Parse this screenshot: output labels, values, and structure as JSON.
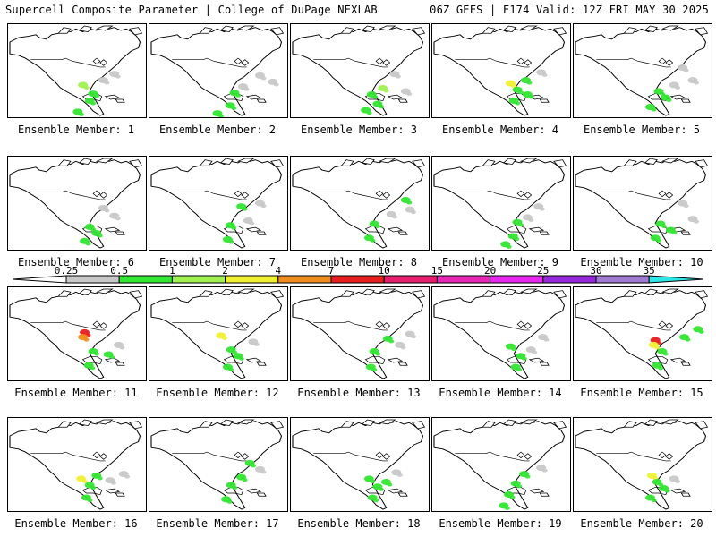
{
  "header": {
    "left": "Supercell Composite Parameter | College of DuPage NEXLAB",
    "right": "06Z GEFS | F174 Valid: 12Z FRI MAY 30 2025"
  },
  "panel_caption_prefix": "Ensemble Member: ",
  "members": [
    {
      "id": "1",
      "blobs": [
        [
          88,
          84,
          "lg"
        ],
        [
          100,
          95,
          "g"
        ],
        [
          96,
          104,
          "g"
        ],
        [
          112,
          78,
          "gy"
        ],
        [
          125,
          70,
          "gy"
        ],
        [
          82,
          118,
          "g"
        ]
      ]
    },
    {
      "id": "2",
      "blobs": [
        [
          100,
          94,
          "g"
        ],
        [
          110,
          86,
          "gy"
        ],
        [
          95,
          110,
          "g"
        ],
        [
          130,
          72,
          "gy"
        ],
        [
          80,
          120,
          "g"
        ],
        [
          145,
          80,
          "gy"
        ]
      ]
    },
    {
      "id": "3",
      "blobs": [
        [
          95,
          96,
          "g"
        ],
        [
          108,
          88,
          "lg"
        ],
        [
          102,
          108,
          "g"
        ],
        [
          122,
          70,
          "gy"
        ],
        [
          88,
          116,
          "g"
        ],
        [
          135,
          92,
          "gy"
        ]
      ]
    },
    {
      "id": "4",
      "blobs": [
        [
          92,
          82,
          "y"
        ],
        [
          100,
          90,
          "g"
        ],
        [
          110,
          78,
          "g"
        ],
        [
          96,
          104,
          "g"
        ],
        [
          128,
          68,
          "gy"
        ],
        [
          112,
          96,
          "g"
        ]
      ]
    },
    {
      "id": "5",
      "blobs": [
        [
          100,
          92,
          "g"
        ],
        [
          118,
          84,
          "gy"
        ],
        [
          128,
          62,
          "gy"
        ],
        [
          90,
          112,
          "g"
        ],
        [
          140,
          78,
          "gy"
        ],
        [
          108,
          100,
          "g"
        ]
      ]
    },
    {
      "id": "6",
      "blobs": [
        [
          96,
          96,
          "g"
        ],
        [
          112,
          72,
          "gy"
        ],
        [
          90,
          114,
          "g"
        ],
        [
          125,
          82,
          "gy"
        ],
        [
          104,
          104,
          "g"
        ]
      ]
    },
    {
      "id": "7",
      "blobs": [
        [
          95,
          94,
          "g"
        ],
        [
          108,
          70,
          "g"
        ],
        [
          92,
          112,
          "g"
        ],
        [
          130,
          66,
          "gy"
        ],
        [
          116,
          88,
          "gy"
        ]
      ]
    },
    {
      "id": "8",
      "blobs": [
        [
          98,
          92,
          "g"
        ],
        [
          135,
          62,
          "g"
        ],
        [
          92,
          110,
          "g"
        ],
        [
          118,
          80,
          "gy"
        ],
        [
          140,
          74,
          "gy"
        ]
      ]
    },
    {
      "id": "9",
      "blobs": [
        [
          100,
          90,
          "g"
        ],
        [
          125,
          70,
          "gy"
        ],
        [
          95,
          108,
          "g"
        ],
        [
          112,
          84,
          "gy"
        ],
        [
          86,
          118,
          "g"
        ]
      ]
    },
    {
      "id": "10",
      "blobs": [
        [
          102,
          92,
          "g"
        ],
        [
          128,
          66,
          "gy"
        ],
        [
          96,
          110,
          "g"
        ],
        [
          140,
          86,
          "gy"
        ],
        [
          114,
          100,
          "g"
        ]
      ]
    },
    {
      "id": "11",
      "blobs": [
        [
          90,
          64,
          "r"
        ],
        [
          88,
          70,
          "o"
        ],
        [
          100,
          88,
          "g"
        ],
        [
          118,
          92,
          "g"
        ],
        [
          95,
          106,
          "g"
        ],
        [
          130,
          80,
          "gy"
        ]
      ]
    },
    {
      "id": "12",
      "blobs": [
        [
          84,
          68,
          "y"
        ],
        [
          96,
          86,
          "g"
        ],
        [
          104,
          94,
          "g"
        ],
        [
          92,
          108,
          "g"
        ],
        [
          122,
          76,
          "gy"
        ]
      ]
    },
    {
      "id": "13",
      "blobs": [
        [
          98,
          88,
          "g"
        ],
        [
          114,
          72,
          "g"
        ],
        [
          94,
          108,
          "g"
        ],
        [
          128,
          80,
          "gy"
        ],
        [
          140,
          66,
          "gy"
        ]
      ]
    },
    {
      "id": "14",
      "blobs": [
        [
          92,
          82,
          "g"
        ],
        [
          104,
          94,
          "g"
        ],
        [
          98,
          108,
          "g"
        ],
        [
          130,
          70,
          "gy"
        ],
        [
          116,
          86,
          "gy"
        ]
      ]
    },
    {
      "id": "15",
      "blobs": [
        [
          96,
          74,
          "r"
        ],
        [
          94,
          80,
          "y"
        ],
        [
          104,
          88,
          "g"
        ],
        [
          130,
          70,
          "g"
        ],
        [
          98,
          106,
          "g"
        ],
        [
          146,
          60,
          "g"
        ]
      ]
    },
    {
      "id": "16",
      "blobs": [
        [
          86,
          84,
          "y"
        ],
        [
          96,
          92,
          "g"
        ],
        [
          104,
          80,
          "g"
        ],
        [
          92,
          108,
          "g"
        ],
        [
          120,
          86,
          "gy"
        ],
        [
          136,
          78,
          "gy"
        ]
      ]
    },
    {
      "id": "17",
      "blobs": [
        [
          96,
          92,
          "g"
        ],
        [
          118,
          64,
          "g"
        ],
        [
          108,
          82,
          "g"
        ],
        [
          90,
          110,
          "g"
        ],
        [
          130,
          72,
          "gy"
        ]
      ]
    },
    {
      "id": "18",
      "blobs": [
        [
          92,
          84,
          "g"
        ],
        [
          102,
          94,
          "g"
        ],
        [
          96,
          108,
          "g"
        ],
        [
          124,
          76,
          "gy"
        ],
        [
          112,
          88,
          "g"
        ]
      ]
    },
    {
      "id": "19",
      "blobs": [
        [
          98,
          90,
          "g"
        ],
        [
          90,
          104,
          "g"
        ],
        [
          108,
          78,
          "g"
        ],
        [
          128,
          70,
          "gy"
        ],
        [
          84,
          118,
          "g"
        ]
      ]
    },
    {
      "id": "20",
      "blobs": [
        [
          92,
          80,
          "y"
        ],
        [
          98,
          88,
          "g"
        ],
        [
          106,
          96,
          "g"
        ],
        [
          90,
          108,
          "g"
        ],
        [
          118,
          84,
          "gy"
        ]
      ]
    }
  ],
  "colorbar": {
    "labels": [
      "0.25",
      "0.5",
      "1",
      "2",
      "4",
      "7",
      "10",
      "15",
      "20",
      "25",
      "30",
      "35"
    ],
    "colors": [
      "#c8c8c8",
      "#32e632",
      "#a0f050",
      "#f0f032",
      "#f08c1e",
      "#e61e1e",
      "#e61e6e",
      "#e628b4",
      "#e628f0",
      "#9628dc",
      "#a07ad2",
      "#2de6e6"
    ]
  },
  "palette": {
    "g": "#32e632",
    "lg": "#a0f050",
    "y": "#f0f032",
    "o": "#f08c1e",
    "r": "#e61e1e",
    "gy": "#c8c8c8"
  }
}
